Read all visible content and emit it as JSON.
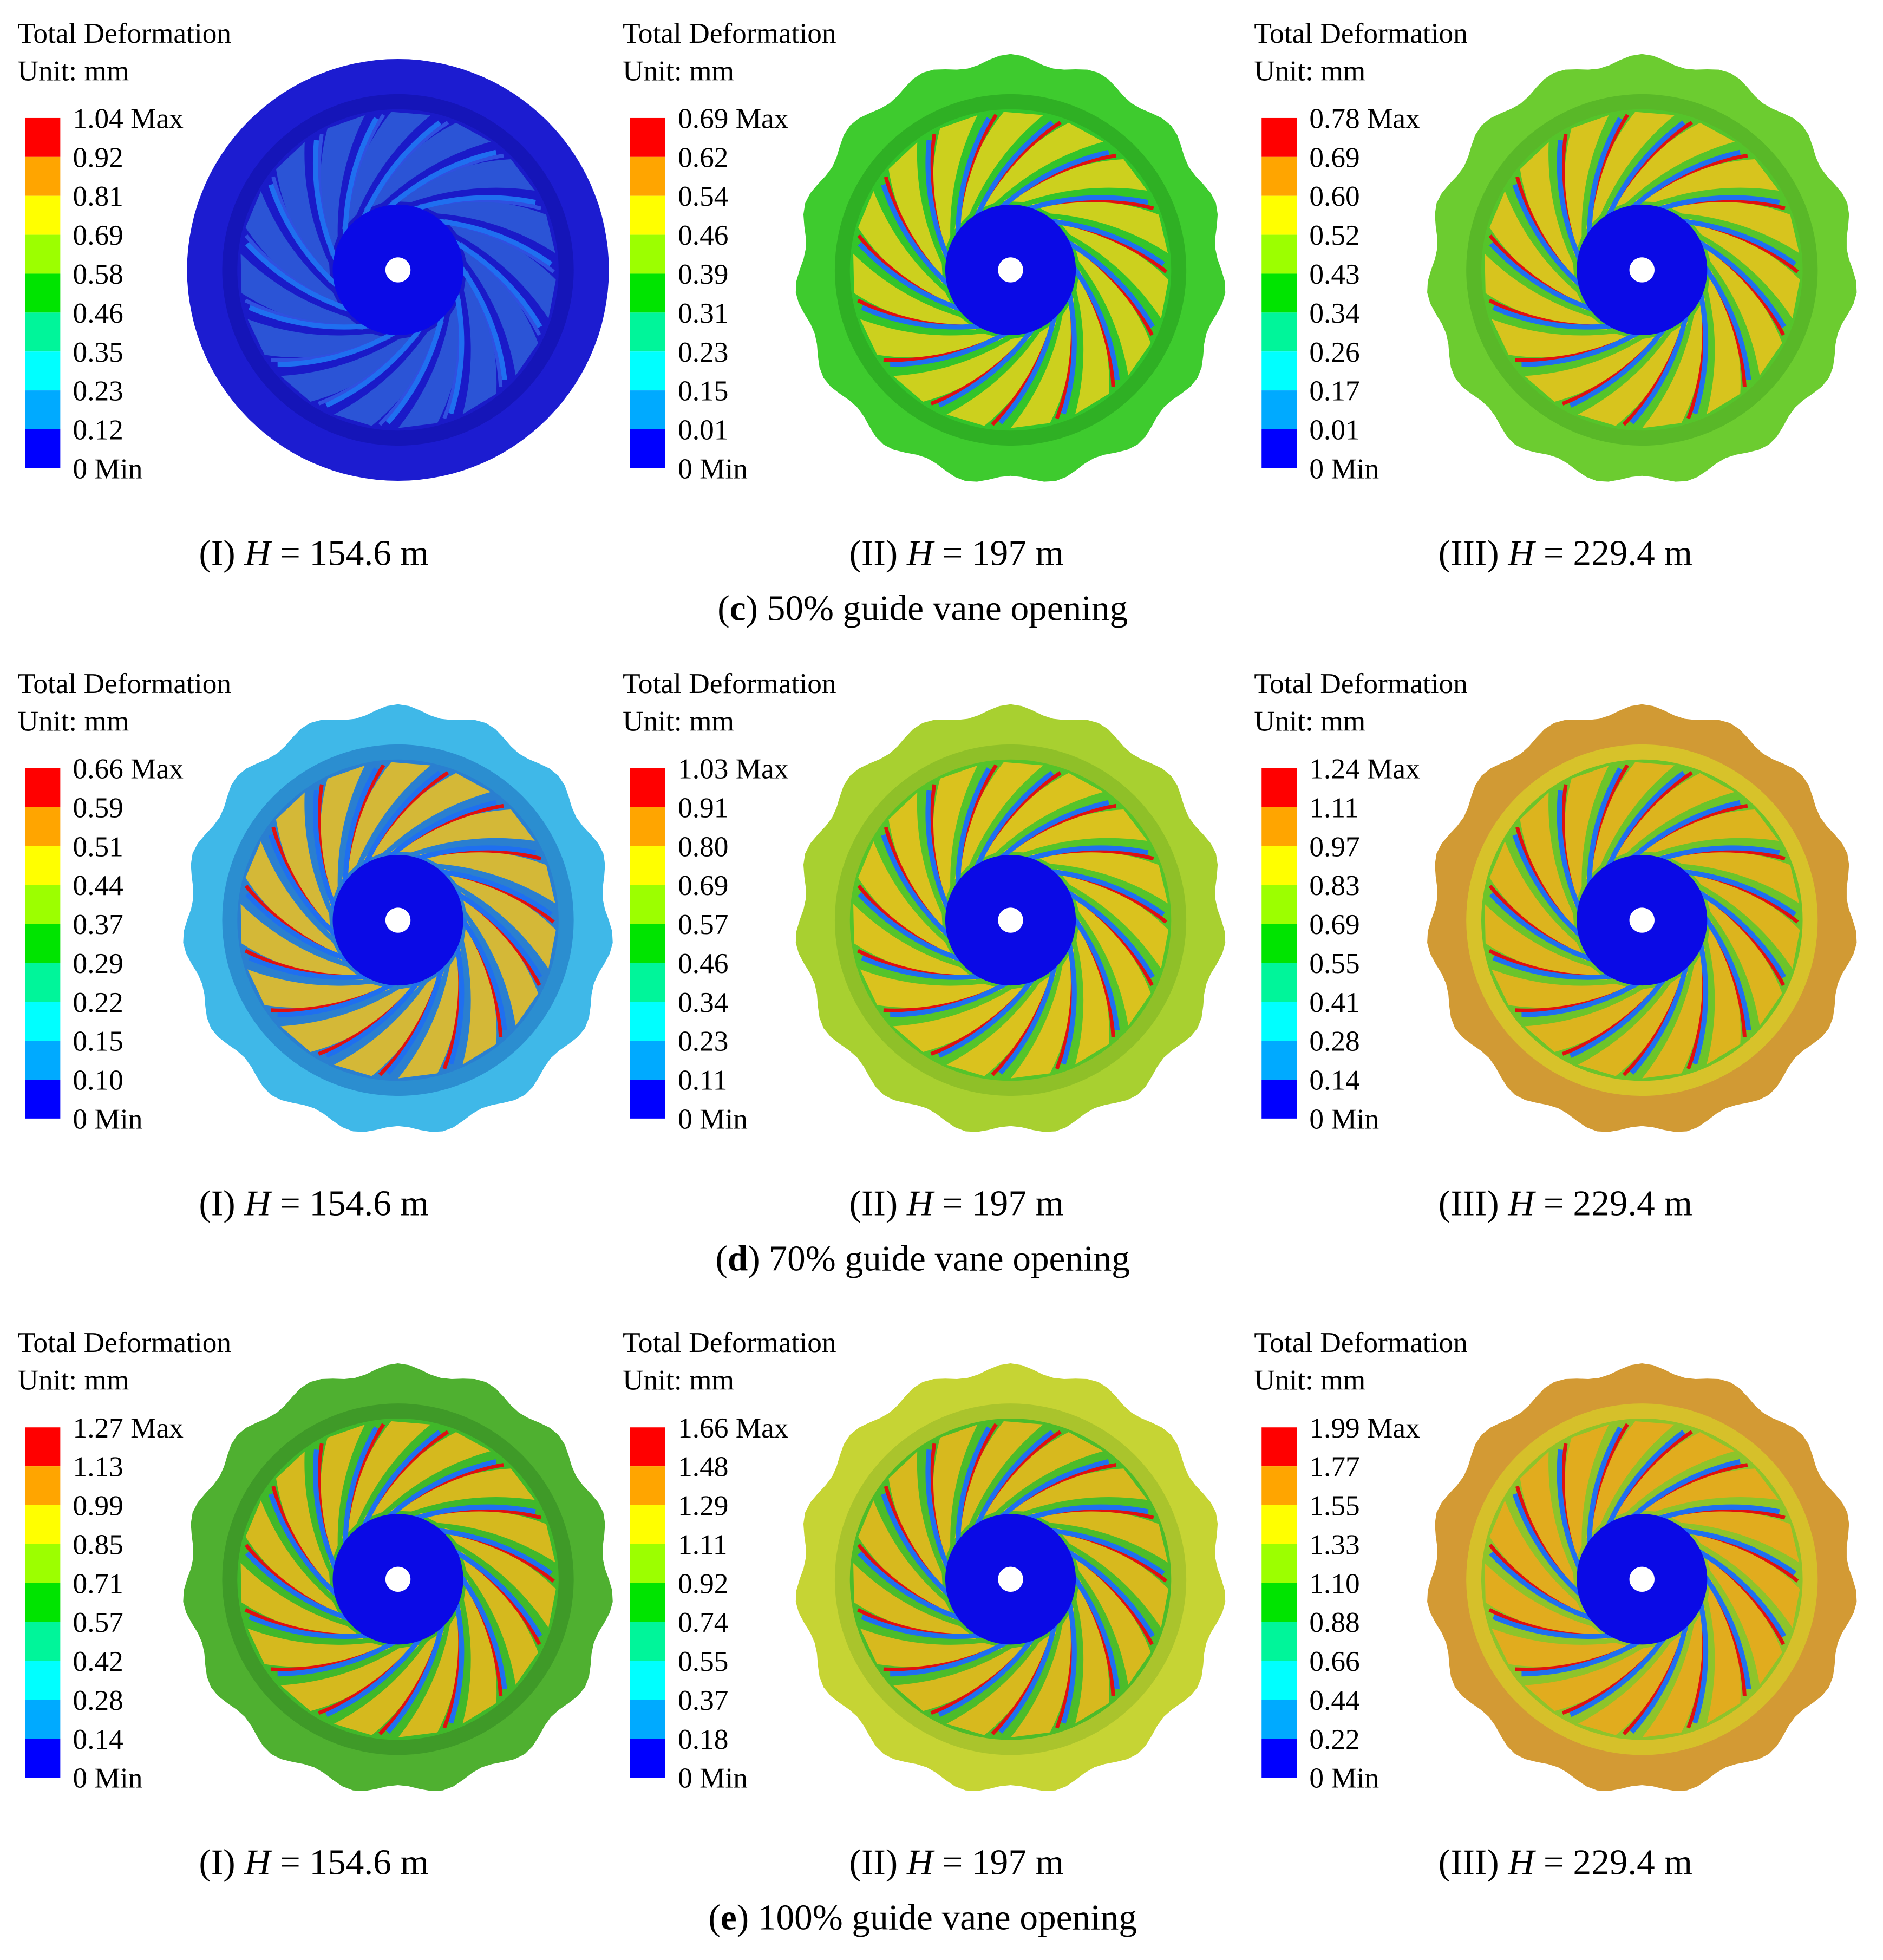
{
  "rows": [
    {
      "caption": {
        "open": "(",
        "letter": "c",
        "text": ") 50% guide vane opening"
      },
      "panels": [
        {
          "title": "Total Deformation",
          "unit": "Unit: mm",
          "legend": [
            "1.04 Max",
            "0.92",
            "0.81",
            "0.69",
            "0.58",
            "0.46",
            "0.35",
            "0.23",
            "0.12",
            "0 Min"
          ],
          "label": {
            "prefix": "(I) ",
            "var": "H",
            "suffix": " = 154.6 m"
          }
        },
        {
          "title": "Total Deformation",
          "unit": "Unit: mm",
          "legend": [
            "0.69 Max",
            "0.62",
            "0.54",
            "0.46",
            "0.39",
            "0.31",
            "0.23",
            "0.15",
            "0.01",
            "0 Min"
          ],
          "label": {
            "prefix": "(II) ",
            "var": "H",
            "suffix": " = 197 m"
          }
        },
        {
          "title": "Total Deformation",
          "unit": "Unit: mm",
          "legend": [
            "0.78 Max",
            "0.69",
            "0.60",
            "0.52",
            "0.43",
            "0.34",
            "0.26",
            "0.17",
            "0.01",
            "0 Min"
          ],
          "label": {
            "prefix": "(III) ",
            "var": "H",
            "suffix": " = 229.4 m"
          }
        }
      ]
    },
    {
      "caption": {
        "open": "(",
        "letter": "d",
        "text": ") 70% guide vane opening"
      },
      "panels": [
        {
          "title": "Total Deformation",
          "unit": "Unit: mm",
          "legend": [
            "0.66 Max",
            "0.59",
            "0.51",
            "0.44",
            "0.37",
            "0.29",
            "0.22",
            "0.15",
            "0.10",
            "0 Min"
          ],
          "label": {
            "prefix": "(I) ",
            "var": "H",
            "suffix": " = 154.6 m"
          }
        },
        {
          "title": "Total Deformation",
          "unit": "Unit: mm",
          "legend": [
            "1.03 Max",
            "0.91",
            "0.80",
            "0.69",
            "0.57",
            "0.46",
            "0.34",
            "0.23",
            "0.11",
            "0 Min"
          ],
          "label": {
            "prefix": "(II) ",
            "var": "H",
            "suffix": " = 197 m"
          }
        },
        {
          "title": "Total Deformation",
          "unit": "Unit: mm",
          "legend": [
            "1.24 Max",
            "1.11",
            "0.97",
            "0.83",
            "0.69",
            "0.55",
            "0.41",
            "0.28",
            "0.14",
            "0 Min"
          ],
          "label": {
            "prefix": "(III) ",
            "var": "H",
            "suffix": " = 229.4 m"
          }
        }
      ]
    },
    {
      "caption": {
        "open": "(",
        "letter": "e",
        "text": ") 100% guide vane opening"
      },
      "panels": [
        {
          "title": "Total Deformation",
          "unit": "Unit: mm",
          "legend": [
            "1.27 Max",
            "1.13",
            "0.99",
            "0.85",
            "0.71",
            "0.57",
            "0.42",
            "0.28",
            "0.14",
            "0 Min"
          ],
          "label": {
            "prefix": "(I) ",
            "var": "H",
            "suffix": " = 154.6 m"
          }
        },
        {
          "title": "Total Deformation",
          "unit": "Unit: mm",
          "legend": [
            "1.66 Max",
            "1.48",
            "1.29",
            "1.11",
            "0.92",
            "0.74",
            "0.55",
            "0.37",
            "0.18",
            "0 Min"
          ],
          "label": {
            "prefix": "(II) ",
            "var": "H",
            "suffix": " = 197 m"
          }
        },
        {
          "title": "Total Deformation",
          "unit": "Unit: mm",
          "legend": [
            "1.99 Max",
            "1.77",
            "1.55",
            "1.33",
            "1.10",
            "0.88",
            "0.66",
            "0.44",
            "0.22",
            "0 Min"
          ],
          "label": {
            "prefix": "(III) ",
            "var": "H",
            "suffix": " = 229.4 m"
          }
        }
      ]
    }
  ]
}
